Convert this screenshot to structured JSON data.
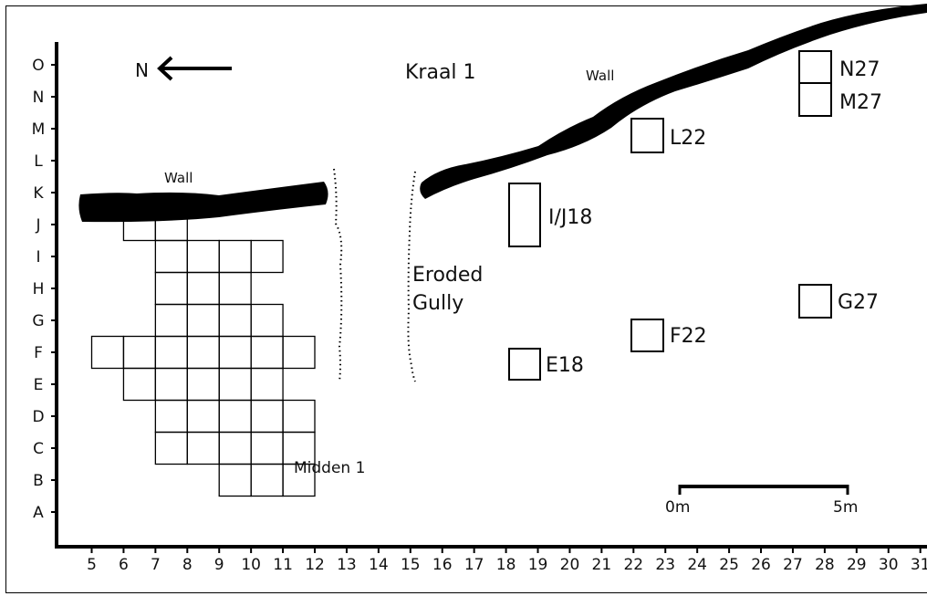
{
  "x_axis": {
    "labels": [
      "5",
      "6",
      "7",
      "8",
      "9",
      "10",
      "11",
      "12",
      "13",
      "14",
      "15",
      "16",
      "17",
      "18",
      "19",
      "20",
      "21",
      "22",
      "23",
      "24",
      "25",
      "26",
      "27",
      "28",
      "29",
      "30",
      "31"
    ]
  },
  "y_axis": {
    "labels": [
      "A",
      "B",
      "C",
      "D",
      "E",
      "F",
      "G",
      "H",
      "I",
      "J",
      "K",
      "L",
      "M",
      "N",
      "O"
    ]
  },
  "north_label": "N",
  "site_title": "Kraal 1",
  "wall_label_left": "Wall",
  "wall_label_right": "Wall",
  "gully_label": {
    "line1": "Eroded",
    "line2": "Gully"
  },
  "midden_label": "Midden 1",
  "units": [
    {
      "label": "N27"
    },
    {
      "label": "M27"
    },
    {
      "label": "L22"
    },
    {
      "label": "I/J18"
    },
    {
      "label": "G27"
    },
    {
      "label": "F22"
    },
    {
      "label": "E18"
    }
  ],
  "scale_bar": {
    "start": "0m",
    "end": "5m"
  },
  "midden_grid_cells": [
    [
      "6",
      "J"
    ],
    [
      "7",
      "J"
    ],
    [
      "7",
      "I"
    ],
    [
      "8",
      "I"
    ],
    [
      "9",
      "I"
    ],
    [
      "10",
      "I"
    ],
    [
      "7",
      "H"
    ],
    [
      "8",
      "H"
    ],
    [
      "9",
      "H"
    ],
    [
      "7",
      "G"
    ],
    [
      "8",
      "G"
    ],
    [
      "9",
      "G"
    ],
    [
      "10",
      "G"
    ],
    [
      "5",
      "F"
    ],
    [
      "6",
      "F"
    ],
    [
      "7",
      "F"
    ],
    [
      "8",
      "F"
    ],
    [
      "9",
      "F"
    ],
    [
      "10",
      "F"
    ],
    [
      "11",
      "F"
    ],
    [
      "6",
      "E"
    ],
    [
      "7",
      "E"
    ],
    [
      "8",
      "E"
    ],
    [
      "9",
      "E"
    ],
    [
      "10",
      "E"
    ],
    [
      "7",
      "D"
    ],
    [
      "8",
      "D"
    ],
    [
      "9",
      "D"
    ],
    [
      "10",
      "D"
    ],
    [
      "11",
      "D"
    ],
    [
      "7",
      "C"
    ],
    [
      "8",
      "C"
    ],
    [
      "9",
      "C"
    ],
    [
      "10",
      "C"
    ],
    [
      "11",
      "C"
    ],
    [
      "9",
      "B"
    ],
    [
      "10",
      "B"
    ],
    [
      "11",
      "B"
    ]
  ]
}
